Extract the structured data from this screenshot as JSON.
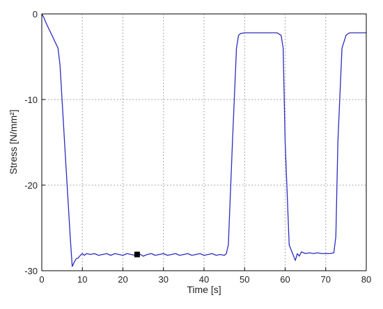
{
  "chart_data": {
    "type": "line",
    "title": "",
    "xlabel": "Time [s]",
    "ylabel": "Stress [N/mm²]",
    "xlim": [
      0,
      80
    ],
    "ylim": [
      -30,
      0
    ],
    "xticks": [
      0,
      10,
      20,
      30,
      40,
      50,
      60,
      70,
      80
    ],
    "yticks": [
      0,
      -10,
      -20,
      -30
    ],
    "grid": true,
    "series": [
      {
        "color": "#2b2bbf",
        "x": [
          0,
          0.5,
          1,
          2,
          3,
          4,
          4.5,
          5,
          6,
          7,
          7.5,
          8,
          8.5,
          9,
          9.5,
          10,
          10.5,
          11,
          12,
          13,
          14,
          15,
          16,
          17,
          18,
          19,
          20,
          21,
          22,
          23,
          24,
          25,
          26,
          27,
          28,
          29,
          30,
          31,
          32,
          33,
          34,
          35,
          36,
          37,
          38,
          39,
          40,
          41,
          42,
          43,
          44,
          45,
          45.5,
          46,
          47,
          48,
          48.5,
          49,
          50,
          51,
          52,
          53,
          54,
          55,
          56,
          57,
          58,
          59,
          59.5,
          60,
          61,
          62,
          62.5,
          63,
          63.5,
          64,
          65,
          66,
          67,
          68,
          69,
          70,
          71,
          72,
          72.5,
          73,
          74,
          75,
          75.5,
          76,
          77,
          78,
          79,
          80
        ],
        "y": [
          0,
          -0.4,
          -1,
          -2,
          -3,
          -4,
          -6,
          -10,
          -18,
          -26,
          -29.5,
          -29,
          -28.6,
          -28.5,
          -28.2,
          -28,
          -28.2,
          -28,
          -28.1,
          -28,
          -28.2,
          -28.1,
          -28,
          -28.2,
          -28,
          -28.1,
          -28.2,
          -28,
          -28.1,
          -28.2,
          -28,
          -28.3,
          -28.1,
          -28,
          -28.2,
          -28.1,
          -28,
          -28.2,
          -28.1,
          -28,
          -28.2,
          -28.1,
          -28,
          -28.2,
          -28.1,
          -28,
          -28.2,
          -28.1,
          -28,
          -28.2,
          -28.1,
          -28.2,
          -28,
          -27,
          -15,
          -4,
          -2.5,
          -2.3,
          -2.2,
          -2.2,
          -2.2,
          -2.2,
          -2.2,
          -2.2,
          -2.2,
          -2.2,
          -2.2,
          -2.5,
          -4,
          -15,
          -27,
          -28.2,
          -28.8,
          -28,
          -28.3,
          -27.8,
          -28,
          -27.9,
          -28,
          -27.9,
          -28,
          -28,
          -28,
          -27.9,
          -26,
          -15,
          -4,
          -2.5,
          -2.3,
          -2.2,
          -2.2,
          -2.2,
          -2.2,
          -2.2
        ]
      }
    ],
    "markers": [
      {
        "x": 23.5,
        "y": -28.1,
        "color": "#000000"
      }
    ]
  }
}
